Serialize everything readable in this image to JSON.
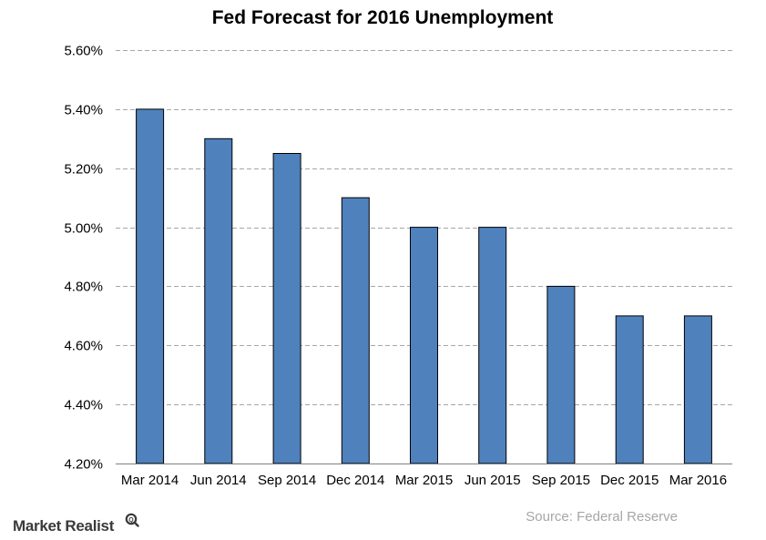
{
  "chart_data": {
    "type": "bar",
    "title": "Fed Forecast for 2016 Unemployment",
    "xlabel": "",
    "ylabel": "",
    "categories": [
      "Mar 2014",
      "Jun 2014",
      "Sep 2014",
      "Dec 2014",
      "Mar 2015",
      "Jun 2015",
      "Sep 2015",
      "Dec 2015",
      "Mar 2016"
    ],
    "values": [
      5.4,
      5.3,
      5.25,
      5.1,
      5.0,
      5.0,
      4.8,
      4.7,
      4.7
    ],
    "ylim": [
      4.2,
      5.6
    ],
    "yticks": [
      4.2,
      4.4,
      4.6,
      4.8,
      5.0,
      5.2,
      5.4,
      5.6
    ],
    "ytick_labels": [
      "4.20%",
      "4.40%",
      "4.60%",
      "4.80%",
      "5.00%",
      "5.20%",
      "5.40%",
      "5.60%"
    ],
    "grid": true,
    "legend": "none",
    "bar_color": "#4f81bd",
    "grid_color": "#a6a6a6"
  },
  "source": "Source: Federal Reserve",
  "brand": "Market Realist",
  "brand_icon": "magnifier-q-icon"
}
